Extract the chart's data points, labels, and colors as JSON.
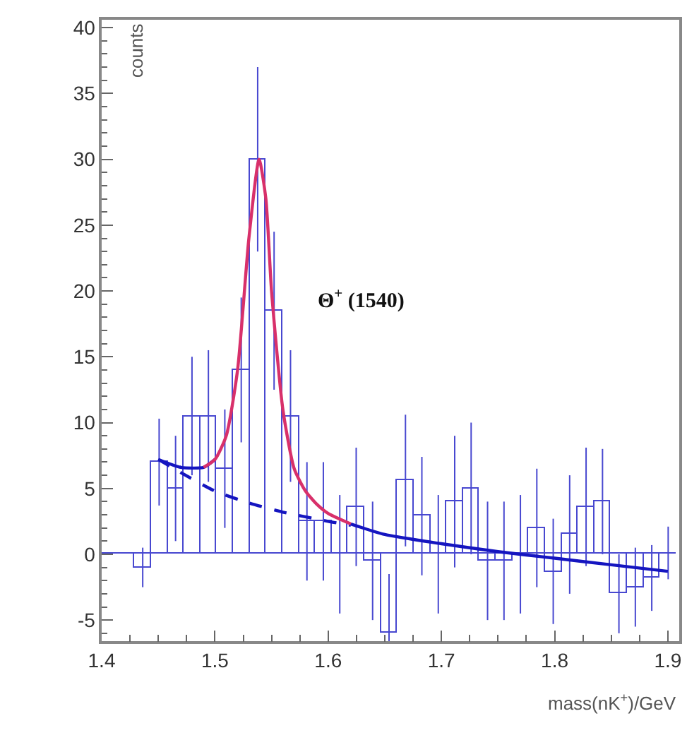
{
  "chart_data": {
    "type": "histogram",
    "ylabel": "counts",
    "xlabel": "mass(nK$^{+}$)/GeV",
    "annotations": [
      "Θ$^{+}$ (1540)"
    ],
    "xlim": [
      1.4,
      1.91
    ],
    "xticks": [
      1.4,
      1.5,
      1.6,
      1.7,
      1.8,
      1.9
    ],
    "ylim": [
      -6.6,
      40.6
    ],
    "yticks": [
      -5,
      0,
      5,
      10,
      15,
      20,
      25,
      30,
      35,
      40
    ],
    "series": [
      {
        "color": "#4848d0",
        "bins": [
          1.4,
          1.4145,
          1.429,
          1.4435,
          1.458,
          1.4725,
          1.487,
          1.5015,
          1.516,
          1.5305,
          1.545,
          1.5595,
          1.574,
          1.5885,
          1.603,
          1.6175,
          1.632,
          1.6465,
          1.661,
          1.6755,
          1.69,
          1.7045,
          1.719,
          1.7335,
          1.748,
          1.7625,
          1.777,
          1.7915,
          1.806,
          1.8205,
          1.835,
          1.8495,
          1.864,
          1.8785,
          1.893,
          1.9075
        ],
        "values": [
          0,
          0,
          -1,
          7,
          5,
          10.5,
          10.5,
          6.5,
          14,
          30,
          18.5,
          10.5,
          2.5,
          2.5,
          0,
          3.6,
          -0.5,
          -6,
          5.6,
          2.9,
          0,
          4,
          5,
          -0.5,
          -0.5,
          0,
          2,
          -1.3,
          1.5,
          3.6,
          4,
          -3,
          -2.5,
          -1.8,
          0.1
        ],
        "errors": [
          null,
          null,
          1.5,
          3.3,
          4,
          4.5,
          5,
          4.5,
          5.5,
          7,
          6,
          5,
          4.5,
          4.5,
          4.5,
          4.5,
          4.5,
          4.5,
          5,
          4.5,
          4.5,
          5,
          5,
          4.5,
          4.5,
          4.5,
          4.5,
          4,
          4.5,
          4.5,
          4,
          3,
          3,
          2.5,
          2
        ]
      },
      {
        "type": "line",
        "color": "#1515c0",
        "line_style": "solid",
        "x": [
          1.45,
          1.47,
          1.49,
          1.5,
          1.6,
          1.62,
          1.65,
          1.7,
          1.75,
          1.8,
          1.85,
          1.9
        ],
        "values": [
          7.2,
          6.6,
          6.6,
          7.2,
          null,
          2.3,
          1.5,
          0.8,
          0.2,
          -0.3,
          -0.8,
          -1.3
        ]
      },
      {
        "type": "line",
        "color": "#1515c0",
        "line_style": "dashed",
        "x": [
          1.45,
          1.47,
          1.5,
          1.53,
          1.56,
          1.6,
          1.62
        ],
        "values": [
          7.2,
          6.2,
          4.8,
          3.9,
          3.2,
          2.5,
          2.2
        ]
      },
      {
        "type": "line",
        "color": "#d8306a",
        "line_style": "solid",
        "x": [
          1.49,
          1.5,
          1.51,
          1.52,
          1.53,
          1.539,
          1.545,
          1.55,
          1.56,
          1.57,
          1.58,
          1.59,
          1.6,
          1.62
        ],
        "values": [
          6.6,
          7.2,
          9,
          14,
          24,
          30,
          27,
          20,
          11,
          6.5,
          4.8,
          3.8,
          3.1,
          2.3
        ]
      }
    ]
  }
}
